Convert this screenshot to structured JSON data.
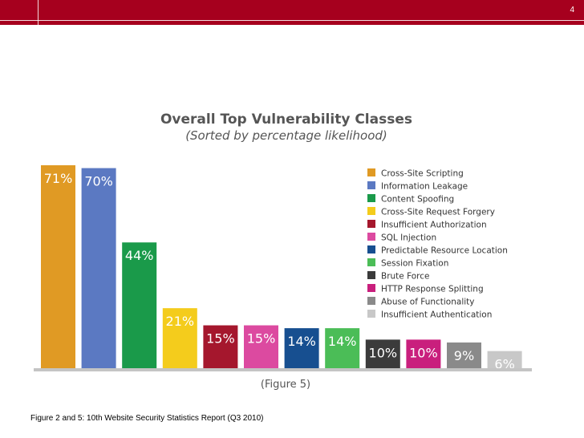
{
  "slide": {
    "number": "4",
    "caption": "Figure 2 and 5: 10th Website Security Statistics Report (Q3 2010)"
  },
  "chart_data": {
    "type": "bar",
    "title": "Overall Top Vulnerability Classes",
    "subtitle": "(Sorted by percentage likelihood)",
    "figure_label": "(Figure 5)",
    "xlabel": "",
    "ylabel": "",
    "ylim": [
      0,
      71
    ],
    "legend_position": "top-right",
    "categories": [
      "Cross-Site Scripting",
      "Information Leakage",
      "Content Spoofing",
      "Cross-Site Request Forgery",
      "Insufficient Authorization",
      "SQL Injection",
      "Predictable Resource Location",
      "Session Fixation",
      "Brute Force",
      "HTTP Response Splitting",
      "Abuse of Functionality",
      "Insufficient Authentication"
    ],
    "values": [
      71,
      70,
      44,
      21,
      15,
      15,
      14,
      14,
      10,
      10,
      9,
      6
    ],
    "labels": [
      "71%",
      "70%",
      "44%",
      "21%",
      "15%",
      "15%",
      "14%",
      "14%",
      "10%",
      "10%",
      "9%",
      "6%"
    ],
    "colors": [
      "#e09a24",
      "#5b79c2",
      "#1a9a4a",
      "#f4cc1c",
      "#a5172d",
      "#dc4aa0",
      "#174f90",
      "#4bbd57",
      "#3b3b3b",
      "#c91f7d",
      "#8a8a8a",
      "#c8c8c8"
    ]
  }
}
